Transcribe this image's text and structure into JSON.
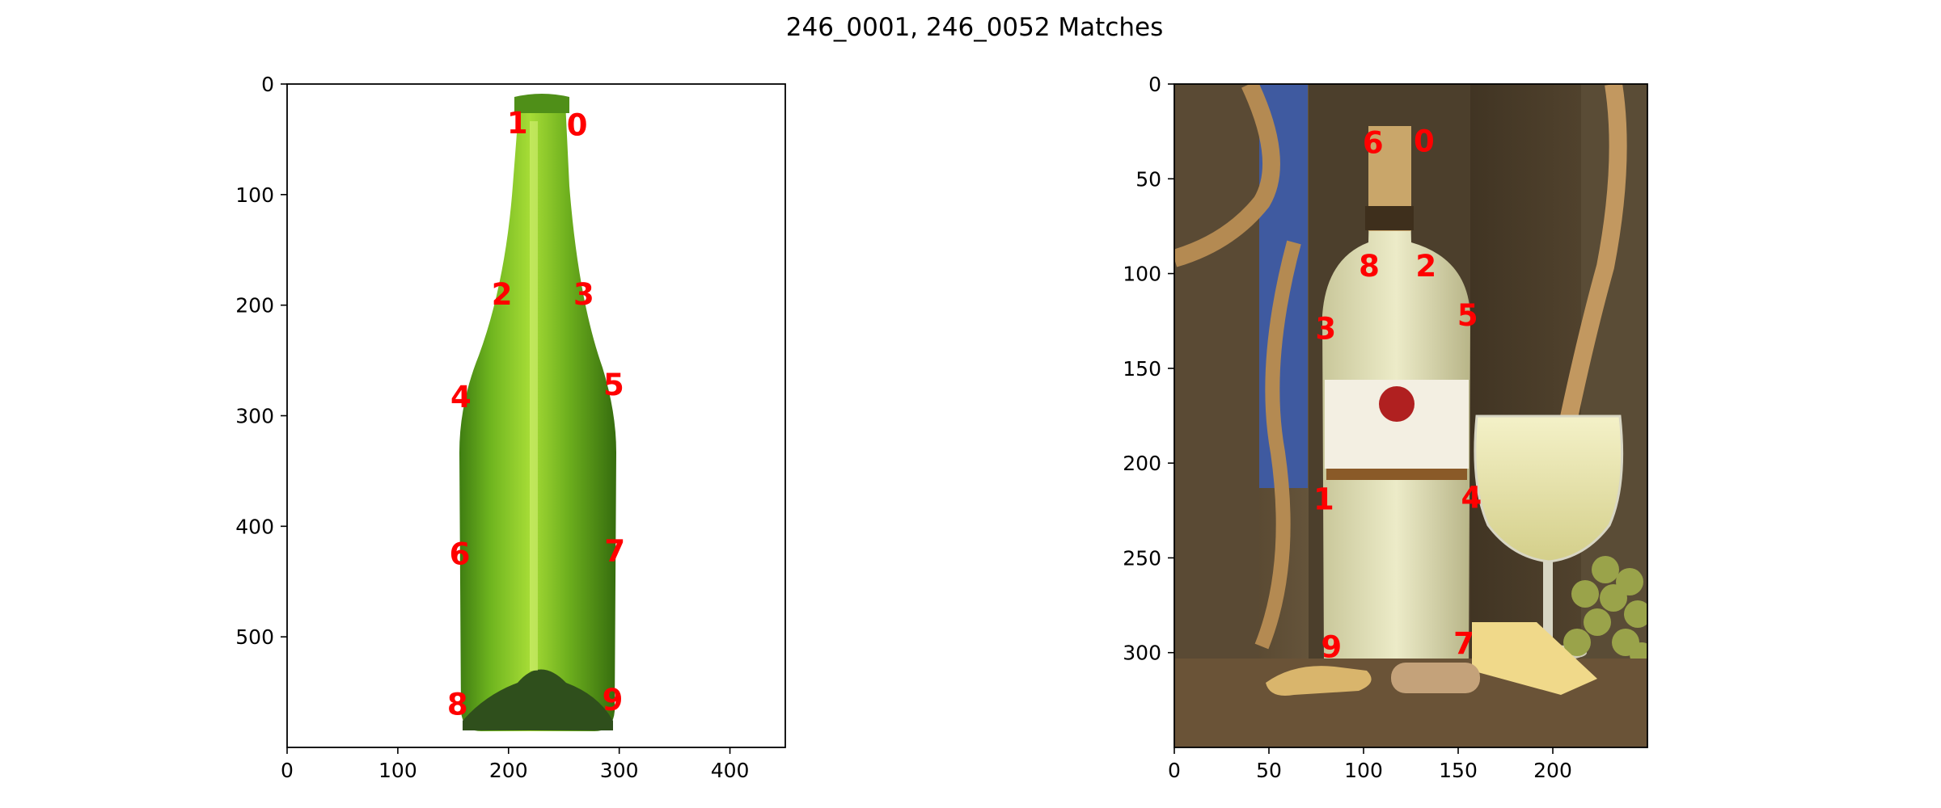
{
  "chart_data": {
    "type": "image-keypoint-matches",
    "title": "246_0001, 246_0052 Matches",
    "panels": [
      {
        "image": "green-glass-wine-bottle",
        "xlim": [
          0,
          450
        ],
        "ylim": [
          0,
          600
        ],
        "y_inverted": true,
        "xticks": [
          0,
          100,
          200,
          300,
          400
        ],
        "yticks": [
          0,
          100,
          200,
          300,
          400,
          500
        ],
        "keypoints": [
          {
            "label": "0",
            "x": 262,
            "y": 37
          },
          {
            "label": "1",
            "x": 208,
            "y": 35
          },
          {
            "label": "2",
            "x": 194,
            "y": 190
          },
          {
            "label": "3",
            "x": 268,
            "y": 190
          },
          {
            "label": "4",
            "x": 157,
            "y": 283
          },
          {
            "label": "5",
            "x": 295,
            "y": 272
          },
          {
            "label": "6",
            "x": 156,
            "y": 425
          },
          {
            "label": "7",
            "x": 296,
            "y": 422
          },
          {
            "label": "8",
            "x": 154,
            "y": 561
          },
          {
            "label": "9",
            "x": 294,
            "y": 557
          }
        ]
      },
      {
        "image": "white-wine-bottle-with-glass-rope-grapes-cheese",
        "xlim": [
          0,
          250
        ],
        "ylim": [
          0,
          350
        ],
        "y_inverted": true,
        "xticks": [
          0,
          50,
          100,
          150,
          200
        ],
        "yticks": [
          0,
          50,
          100,
          150,
          200,
          250,
          300
        ],
        "keypoints": [
          {
            "label": "0",
            "x": 132,
            "y": 30
          },
          {
            "label": "1",
            "x": 79,
            "y": 219
          },
          {
            "label": "2",
            "x": 133,
            "y": 96
          },
          {
            "label": "3",
            "x": 80,
            "y": 129
          },
          {
            "label": "4",
            "x": 157,
            "y": 218
          },
          {
            "label": "5",
            "x": 155,
            "y": 122
          },
          {
            "label": "6",
            "x": 105,
            "y": 31
          },
          {
            "label": "7",
            "x": 153,
            "y": 295
          },
          {
            "label": "8",
            "x": 103,
            "y": 96
          },
          {
            "label": "9",
            "x": 83,
            "y": 297
          }
        ]
      }
    ]
  },
  "colors": {
    "keypoint_label": "#ff0000",
    "axes": "#000000",
    "background": "#ffffff"
  }
}
